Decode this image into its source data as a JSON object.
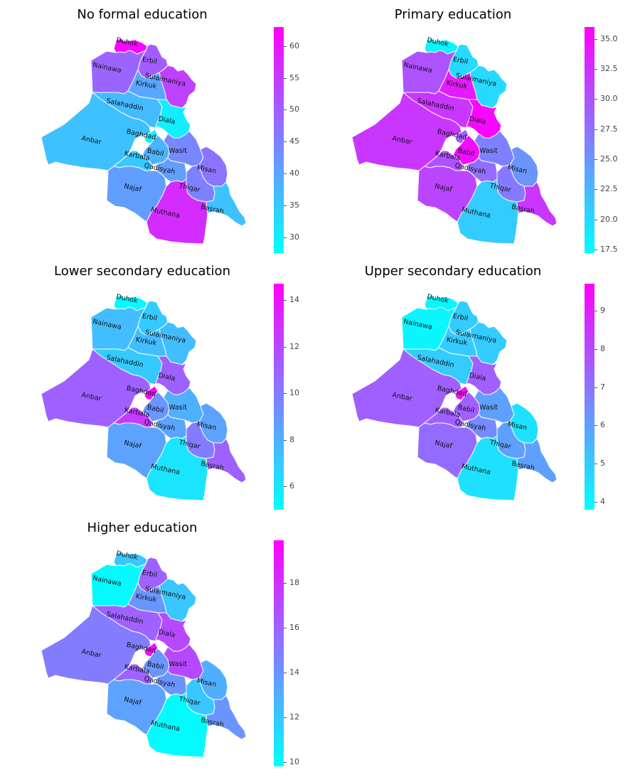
{
  "colormap": {
    "low": "#00ffff",
    "high": "#ff00ff"
  },
  "regions": [
    "Duhok",
    "Erbil",
    "Sulaimaniya",
    "Nainawa",
    "Kirkuk",
    "Salahaddin",
    "Diala",
    "Anbar",
    "Baghdad",
    "Karbala",
    "Babil",
    "Wasit",
    "Qadisyah",
    "Misan",
    "Najaf",
    "Thiqar",
    "Muthana",
    "Basrah"
  ],
  "maps": [
    {
      "title": "No formal education",
      "range": [
        27.5,
        63
      ],
      "ticks": [
        "30",
        "35",
        "40",
        "45",
        "50",
        "55",
        "60"
      ],
      "values": {
        "Duhok": 62,
        "Erbil": 50,
        "Sulaimaniya": 54,
        "Nainawa": 49,
        "Kirkuk": 40,
        "Salahaddin": 37,
        "Diala": 30,
        "Anbar": 36,
        "Baghdad": 30,
        "Karbala": 35,
        "Babil": 38,
        "Wasit": 44,
        "Qadisyah": 41,
        "Misan": 47,
        "Najaf": 41,
        "Thiqar": 45,
        "Muthana": 57,
        "Basrah": 36
      }
    },
    {
      "title": "Primary education",
      "range": [
        17.2,
        36
      ],
      "ticks": [
        "17.5",
        "20.0",
        "22.5",
        "25.0",
        "27.5",
        "30.0",
        "32.5",
        "35.0"
      ],
      "values": {
        "Duhok": 18,
        "Erbil": 20,
        "Sulaimaniya": 20,
        "Nainawa": 30,
        "Kirkuk": 34,
        "Salahaddin": 32,
        "Diala": 35.5,
        "Anbar": 32,
        "Baghdad": 29,
        "Karbala": 30,
        "Babil": 35,
        "Wasit": 26.5,
        "Qadisyah": 28,
        "Misan": 25,
        "Najaf": 31,
        "Thiqar": 27,
        "Muthana": 21,
        "Basrah": 32
      }
    },
    {
      "title": "Lower secondary education",
      "range": [
        5,
        14.7
      ],
      "ticks": [
        "6",
        "8",
        "10",
        "12",
        "14"
      ],
      "values": {
        "Duhok": 5.2,
        "Erbil": 7,
        "Sulaimaniya": 7.5,
        "Nainawa": 7.5,
        "Kirkuk": 7.5,
        "Salahaddin": 7,
        "Diala": 11,
        "Anbar": 11,
        "Baghdad": 14.5,
        "Karbala": 12.5,
        "Babil": 9,
        "Wasit": 8,
        "Qadisyah": 8.5,
        "Misan": 8.5,
        "Najaf": 8.5,
        "Thiqar": 10,
        "Muthana": 6,
        "Basrah": 11
      }
    },
    {
      "title": "Upper secondary education",
      "range": [
        3.8,
        9.7
      ],
      "ticks": [
        "4",
        "5",
        "6",
        "7",
        "8",
        "9"
      ],
      "values": {
        "Duhok": 4,
        "Erbil": 5,
        "Sulaimaniya": 5,
        "Nainawa": 4,
        "Kirkuk": 5,
        "Salahaddin": 5,
        "Diala": 7.5,
        "Anbar": 7.5,
        "Baghdad": 9.5,
        "Karbala": 7.5,
        "Babil": 7.5,
        "Wasit": 6,
        "Qadisyah": 6.5,
        "Misan": 4.5,
        "Najaf": 7.2,
        "Thiqar": 6,
        "Muthana": 4.5,
        "Basrah": 6
      }
    },
    {
      "title": "Higher education",
      "range": [
        9.8,
        19.9
      ],
      "ticks": [
        "10",
        "12",
        "14",
        "16",
        "18"
      ],
      "values": {
        "Duhok": 12,
        "Erbil": 16,
        "Sulaimaniya": 12,
        "Nainawa": 10,
        "Kirkuk": 14,
        "Salahaddin": 16,
        "Diala": 17,
        "Anbar": 15,
        "Baghdad": 19.5,
        "Karbala": 16,
        "Babil": 14,
        "Wasit": 17,
        "Qadisyah": 14,
        "Misan": 13,
        "Najaf": 13.5,
        "Thiqar": 12,
        "Muthana": 10,
        "Basrah": 14
      }
    }
  ]
}
